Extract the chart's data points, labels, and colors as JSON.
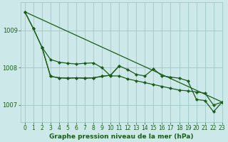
{
  "title": "Graphe pression niveau de la mer (hPa)",
  "bg_color": "#cce8e8",
  "grid_color": "#9ec8c8",
  "line_color": "#1a5c1a",
  "xlim": [
    -0.5,
    23
  ],
  "ylim": [
    1006.55,
    1009.75
  ],
  "yticks": [
    1007,
    1008,
    1009
  ],
  "xticks": [
    0,
    1,
    2,
    3,
    4,
    5,
    6,
    7,
    8,
    9,
    10,
    11,
    12,
    13,
    14,
    15,
    16,
    17,
    18,
    19,
    20,
    21,
    22,
    23
  ],
  "line1_x": [
    0,
    1,
    2,
    3,
    4,
    5,
    6,
    7,
    8,
    9,
    10,
    11,
    12,
    13,
    14,
    15,
    16,
    17,
    18,
    19,
    20,
    21,
    22,
    23
  ],
  "line1_y": [
    1009.5,
    1009.05,
    1008.55,
    1007.77,
    1007.73,
    1007.72,
    1007.73,
    1007.72,
    1007.73,
    1007.77,
    1007.8,
    1008.05,
    1007.95,
    1007.82,
    1007.78,
    1007.97,
    1007.78,
    1007.75,
    1007.72,
    1007.65,
    1007.15,
    1007.12,
    1006.82,
    1007.08
  ],
  "line2_x": [
    0,
    1,
    2,
    3,
    4,
    5,
    6,
    7,
    8,
    9,
    10,
    11,
    12,
    13,
    14,
    15,
    16,
    17,
    18,
    19,
    20,
    21,
    22,
    23
  ],
  "line2_y": [
    1009.5,
    1009.05,
    1008.55,
    1008.22,
    1008.15,
    1008.12,
    1008.1,
    1008.12,
    1008.13,
    1008.0,
    1007.78,
    1007.78,
    1007.7,
    1007.65,
    1007.6,
    1007.55,
    1007.5,
    1007.45,
    1007.4,
    1007.38,
    1007.35,
    1007.32,
    1007.0,
    1007.08
  ],
  "line3_x": [
    2,
    3,
    4,
    5,
    6,
    7,
    8,
    9,
    10,
    11
  ],
  "line3_y": [
    1008.55,
    1007.77,
    1007.73,
    1007.72,
    1007.73,
    1007.72,
    1007.73,
    1007.77,
    1007.8,
    1008.05
  ],
  "line4_x": [
    0,
    23
  ],
  "line4_y": [
    1009.5,
    1007.08
  ],
  "tick_fontsize": 5.5,
  "label_fontsize": 6.5
}
